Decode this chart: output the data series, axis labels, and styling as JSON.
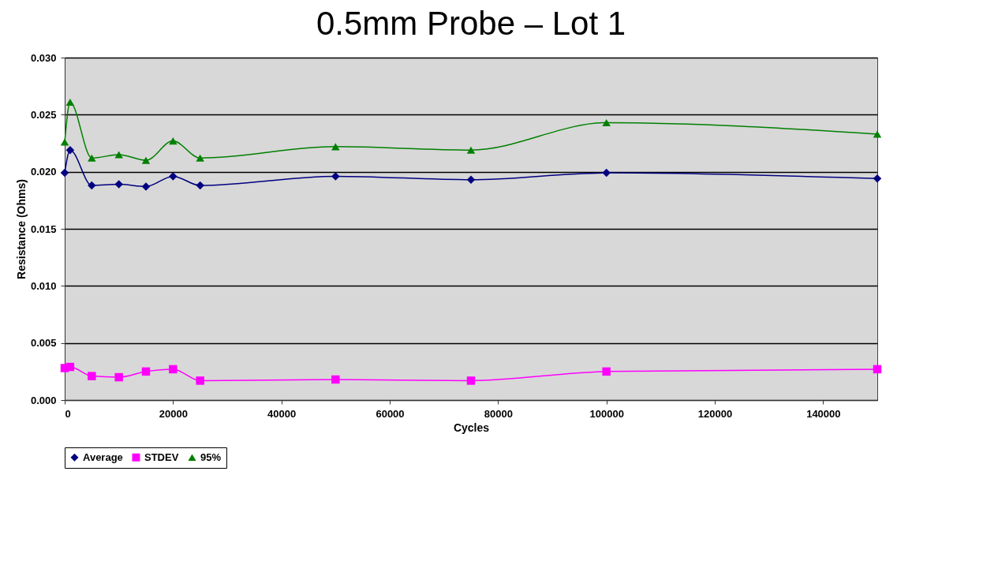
{
  "chart_data": {
    "type": "line",
    "title": "0.5mm Probe – Lot 1",
    "xlabel": "Cycles",
    "ylabel": "Resistance (Ohms)",
    "x": [
      0,
      1000,
      5000,
      10000,
      15000,
      20000,
      25000,
      50000,
      75000,
      100000,
      150000
    ],
    "series": [
      {
        "name": "Average",
        "color": "#000080",
        "marker": "diamond",
        "values": [
          0.0199,
          0.0219,
          0.0188,
          0.0189,
          0.0187,
          0.0196,
          0.0188,
          0.0196,
          0.0193,
          0.0199,
          0.0194
        ]
      },
      {
        "name": "STDEV",
        "color": "#ff00ff",
        "marker": "square",
        "values": [
          0.0028,
          0.0029,
          0.0021,
          0.002,
          0.0025,
          0.0027,
          0.0017,
          0.0018,
          0.0017,
          0.0025,
          0.0027
        ]
      },
      {
        "name": "95%",
        "color": "#008000",
        "marker": "triangle",
        "values": [
          0.0226,
          0.0261,
          0.0212,
          0.0215,
          0.021,
          0.0227,
          0.0212,
          0.0222,
          0.0219,
          0.0243,
          0.0233
        ]
      }
    ],
    "xlim": [
      0,
      150000
    ],
    "xticks": [
      0,
      20000,
      40000,
      60000,
      80000,
      100000,
      120000,
      140000
    ],
    "ylim": [
      0,
      0.03
    ],
    "yticks": [
      {
        "value": 0,
        "label": "0.000"
      },
      {
        "value": 0.005,
        "label": "0.005"
      },
      {
        "value": 0.01,
        "label": "0.010"
      },
      {
        "value": 0.015,
        "label": "0.015"
      },
      {
        "value": 0.02,
        "label": "0.020"
      },
      {
        "value": 0.025,
        "label": "0.025"
      },
      {
        "value": 0.03,
        "label": "0.030"
      }
    ],
    "grid": "y",
    "legend": "bottom",
    "line_style": "solid"
  }
}
